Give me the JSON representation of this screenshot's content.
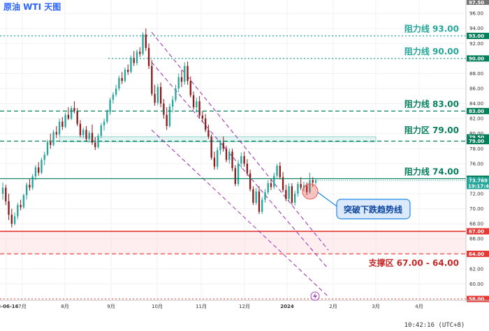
{
  "chart_data": {
    "type": "candlestick",
    "title": "原油 WTI 天图",
    "ylim": [
      58.0,
      97.5
    ],
    "y_ticks": [
      60.0,
      62.0,
      64.0,
      66.0,
      68.0,
      70.0,
      72.0,
      74.0,
      76.0,
      78.0,
      80.0,
      82.0,
      84.0,
      86.0,
      88.0,
      90.0,
      92.0,
      94.0,
      96.0
    ],
    "x_tick_labels": [
      "23-06-16",
      "7月",
      "8月",
      "9月",
      "10月",
      "11月",
      "12月",
      "2024",
      "2月",
      "3月",
      "4月"
    ],
    "resistance_lines": [
      {
        "label": "阻力线 93.00",
        "value": 93.0,
        "tag": "93.00",
        "style": "dotted",
        "color": "#26a69a"
      },
      {
        "label": "阻力线 90.00",
        "value": 90.0,
        "tag": "90.00",
        "style": "dotted",
        "color": "#26a69a"
      },
      {
        "label": "阻力线 83.00",
        "value": 83.0,
        "tag": "83.00",
        "style": "dashed",
        "color": "#087f5b"
      },
      {
        "label": "阻力线 74.00",
        "value": 74.0,
        "tag": "74.00",
        "style": "solid",
        "color": "#087f5b"
      }
    ],
    "resistance_zone": {
      "label": "阻力区 79.00",
      "low": 79.0,
      "high": 79.5,
      "tags": [
        "79.50",
        "79.00"
      ],
      "color": "#087f5b"
    },
    "support_zone": {
      "label": "支撑区 67.00 - 64.00",
      "low": 64.0,
      "high": 67.0,
      "tags": [
        "67.00",
        "64.00"
      ],
      "color": "#e53935"
    },
    "bottom_line": {
      "value": 58.0,
      "tag": "58.00"
    },
    "top_tag": "97.50",
    "current_price": {
      "value": 73.769,
      "tag": "73.769",
      "countdown": "19:17:44"
    },
    "channel": {
      "upper": [
        [
          0.0,
          93.5
        ],
        [
          1.0,
          64.5
        ]
      ],
      "lower": [
        [
          0.0,
          80.5
        ],
        [
          1.0,
          58.3
        ]
      ],
      "middle": [
        [
          0.0,
          89.5
        ],
        [
          1.0,
          62.0
        ]
      ]
    },
    "callout": {
      "text": "突破下跌趋势线",
      "marker_value": 72.3
    },
    "candles": [
      [
        72.0,
        73.5,
        71.2,
        72.8
      ],
      [
        72.8,
        73.2,
        70.5,
        71.0
      ],
      [
        71.0,
        72.0,
        68.5,
        69.2
      ],
      [
        69.2,
        70.0,
        67.5,
        68.0
      ],
      [
        68.0,
        69.5,
        67.8,
        69.0
      ],
      [
        69.0,
        70.8,
        68.6,
        70.5
      ],
      [
        70.5,
        71.2,
        69.8,
        70.2
      ],
      [
        70.2,
        72.0,
        70.0,
        71.8
      ],
      [
        71.8,
        73.5,
        71.2,
        73.2
      ],
      [
        73.2,
        74.0,
        72.4,
        72.8
      ],
      [
        72.8,
        74.6,
        72.5,
        74.3
      ],
      [
        74.3,
        75.8,
        73.8,
        75.5
      ],
      [
        75.5,
        76.2,
        74.4,
        74.8
      ],
      [
        74.8,
        76.8,
        74.6,
        76.5
      ],
      [
        76.5,
        77.6,
        75.8,
        77.2
      ],
      [
        77.2,
        79.2,
        77.0,
        78.9
      ],
      [
        78.9,
        80.0,
        78.0,
        78.5
      ],
      [
        78.5,
        80.5,
        78.3,
        80.2
      ],
      [
        80.2,
        81.0,
        79.4,
        79.9
      ],
      [
        79.9,
        82.0,
        79.6,
        81.6
      ],
      [
        81.6,
        82.2,
        80.5,
        80.9
      ],
      [
        80.9,
        82.8,
        80.7,
        82.5
      ],
      [
        82.5,
        83.5,
        81.8,
        82.0
      ],
      [
        82.0,
        83.7,
        81.8,
        83.4
      ],
      [
        83.4,
        84.3,
        82.7,
        83.0
      ],
      [
        83.0,
        83.4,
        81.0,
        81.3
      ],
      [
        81.3,
        81.8,
        79.5,
        79.8
      ],
      [
        79.8,
        80.8,
        79.4,
        80.5
      ],
      [
        80.5,
        81.0,
        79.0,
        79.3
      ],
      [
        79.3,
        80.4,
        78.8,
        80.1
      ],
      [
        80.1,
        81.2,
        78.5,
        78.8
      ],
      [
        78.8,
        79.5,
        77.8,
        78.2
      ],
      [
        78.2,
        80.0,
        78.0,
        79.7
      ],
      [
        79.7,
        81.4,
        79.4,
        81.1
      ],
      [
        81.1,
        82.0,
        80.4,
        81.6
      ],
      [
        81.6,
        83.2,
        81.3,
        82.9
      ],
      [
        82.9,
        84.8,
        82.5,
        84.5
      ],
      [
        84.5,
        85.5,
        84.0,
        85.2
      ],
      [
        85.2,
        86.5,
        84.9,
        86.0
      ],
      [
        86.0,
        87.7,
        85.7,
        87.4
      ],
      [
        87.4,
        88.2,
        86.6,
        87.0
      ],
      [
        87.0,
        88.8,
        86.8,
        88.5
      ],
      [
        88.5,
        89.2,
        87.8,
        88.2
      ],
      [
        88.2,
        90.4,
        88.0,
        90.1
      ],
      [
        90.1,
        91.0,
        89.0,
        89.4
      ],
      [
        89.4,
        91.2,
        89.1,
        90.9
      ],
      [
        90.9,
        91.5,
        90.2,
        90.6
      ],
      [
        90.6,
        93.5,
        90.4,
        93.2
      ],
      [
        93.2,
        94.0,
        91.0,
        91.4
      ],
      [
        91.4,
        92.0,
        88.6,
        89.0
      ],
      [
        89.0,
        89.8,
        85.0,
        85.3
      ],
      [
        85.3,
        86.5,
        83.7,
        84.1
      ],
      [
        84.1,
        86.6,
        83.8,
        86.2
      ],
      [
        86.2,
        86.8,
        83.5,
        84.0
      ],
      [
        84.0,
        84.6,
        82.0,
        82.5
      ],
      [
        82.5,
        83.5,
        80.5,
        81.0
      ],
      [
        81.0,
        84.0,
        80.8,
        83.6
      ],
      [
        83.6,
        85.0,
        82.8,
        84.5
      ],
      [
        84.5,
        86.5,
        84.2,
        86.0
      ],
      [
        86.0,
        88.0,
        85.5,
        87.5
      ],
      [
        87.5,
        88.5,
        86.2,
        86.9
      ],
      [
        86.9,
        89.5,
        86.5,
        89.0
      ],
      [
        89.0,
        89.6,
        86.5,
        87.0
      ],
      [
        87.0,
        87.6,
        84.8,
        85.1
      ],
      [
        85.1,
        85.6,
        83.2,
        83.5
      ],
      [
        83.5,
        84.8,
        82.8,
        84.3
      ],
      [
        84.3,
        85.0,
        82.0,
        82.4
      ],
      [
        82.4,
        83.0,
        81.5,
        82.0
      ],
      [
        82.0,
        82.6,
        80.2,
        80.5
      ],
      [
        80.5,
        81.2,
        79.3,
        79.6
      ],
      [
        79.6,
        79.9,
        76.5,
        76.8
      ],
      [
        76.8,
        77.6,
        75.2,
        75.6
      ],
      [
        75.6,
        78.2,
        75.2,
        77.8
      ],
      [
        77.8,
        79.2,
        77.2,
        78.8
      ],
      [
        78.8,
        79.6,
        77.6,
        78.0
      ],
      [
        78.0,
        78.4,
        76.2,
        76.5
      ],
      [
        76.5,
        78.0,
        76.0,
        77.6
      ],
      [
        77.6,
        78.0,
        75.0,
        75.4
      ],
      [
        75.4,
        75.8,
        73.0,
        73.3
      ],
      [
        73.3,
        76.5,
        73.0,
        76.0
      ],
      [
        76.0,
        77.5,
        75.4,
        77.0
      ],
      [
        77.0,
        77.6,
        75.6,
        76.0
      ],
      [
        76.0,
        76.6,
        74.4,
        74.7
      ],
      [
        74.7,
        75.2,
        72.3,
        72.6
      ],
      [
        72.6,
        73.0,
        70.5,
        70.8
      ],
      [
        70.8,
        72.8,
        70.5,
        72.3
      ],
      [
        72.3,
        73.0,
        69.3,
        69.6
      ],
      [
        69.6,
        71.6,
        69.3,
        71.2
      ],
      [
        71.2,
        72.6,
        70.8,
        72.2
      ],
      [
        72.2,
        73.8,
        71.9,
        73.4
      ],
      [
        73.4,
        74.0,
        72.5,
        72.9
      ],
      [
        72.9,
        74.8,
        72.6,
        74.4
      ],
      [
        74.4,
        76.0,
        74.1,
        75.7
      ],
      [
        75.7,
        76.2,
        73.9,
        74.2
      ],
      [
        74.2,
        74.9,
        72.2,
        72.5
      ],
      [
        72.5,
        73.2,
        71.0,
        71.3
      ],
      [
        71.3,
        73.4,
        71.0,
        73.0
      ],
      [
        73.0,
        73.4,
        70.5,
        70.8
      ],
      [
        70.8,
        72.4,
        70.4,
        72.0
      ],
      [
        72.0,
        73.6,
        71.6,
        73.3
      ],
      [
        73.3,
        74.2,
        72.5,
        72.8
      ],
      [
        72.8,
        73.6,
        72.3,
        73.1
      ],
      [
        73.1,
        73.5,
        71.8,
        72.2
      ],
      [
        72.2,
        74.8,
        72.0,
        73.8
      ],
      [
        73.8,
        74.2,
        72.9,
        73.5
      ],
      [
        73.5,
        74.0,
        73.2,
        73.769
      ]
    ]
  },
  "clock": "10:42:16 (UTC+8)"
}
